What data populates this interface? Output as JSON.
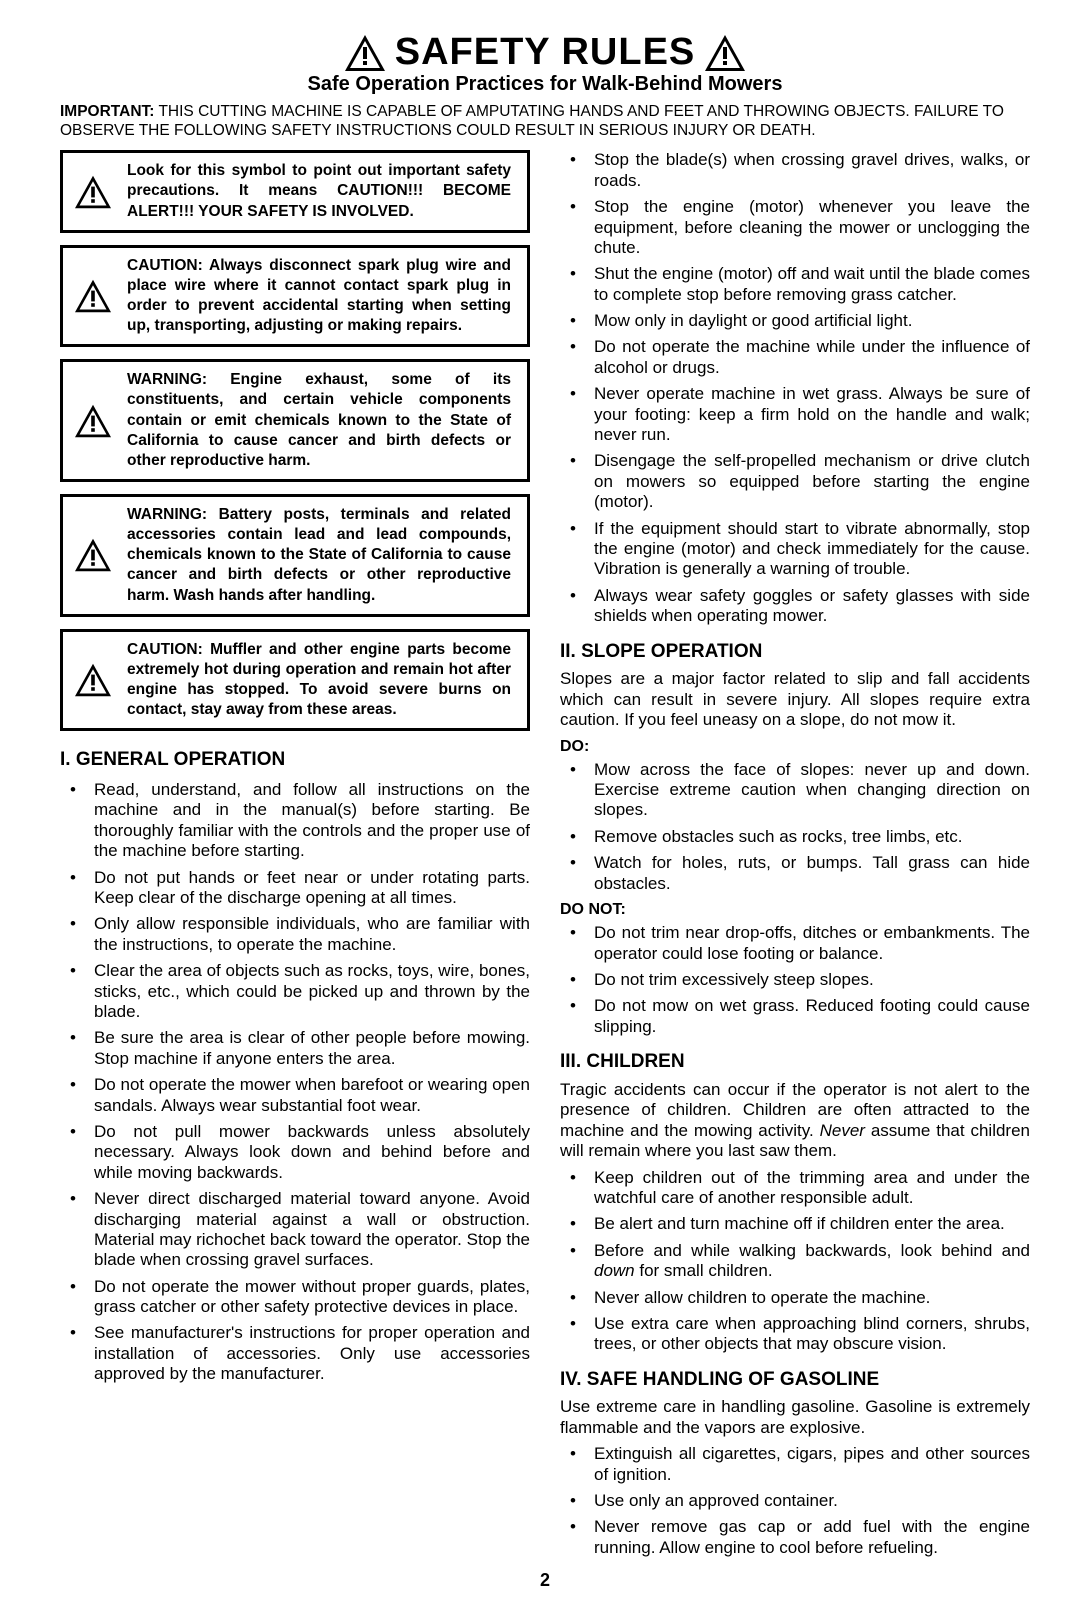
{
  "header": {
    "title": "SAFETY RULES",
    "subtitle": "Safe Operation Practices for Walk-Behind Mowers"
  },
  "important": {
    "label": "IMPORTANT:",
    "text": " THIS CUTTING MACHINE IS CAPABLE OF AMPUTATING HANDS AND FEET AND THROWING OBJECTS. FAILURE TO OBSERVE THE FOLLOWING SAFETY INSTRUCTIONS COULD RESULT IN SERIOUS INJURY OR DEATH."
  },
  "warnings": [
    "Look for this symbol to point out important safety precautions. It means CAUTION!!! BECOME ALERT!!! YOUR SAFETY IS INVOLVED.",
    "CAUTION: Always disconnect spark plug wire and place wire where it cannot contact spark plug in order to prevent accidental starting when setting up, transporting, adjusting or making repairs.",
    "WARNING: Engine exhaust, some of its constituents, and certain vehicle components contain or emit chemicals known to the State of California to cause cancer and birth defects or other reproductive harm.",
    "WARNING: Battery posts, terminals and related accessories contain lead and lead compounds, chemicals known to the State of California to cause cancer and birth defects or other reproductive harm. Wash hands after handling.",
    "CAUTION: Muffler and other engine parts become extremely hot during operation and remain hot after engine has stopped. To avoid severe burns on contact, stay away from these areas."
  ],
  "sections": {
    "general": {
      "heading": "I. GENERAL OPERATION",
      "items": [
        "Read, understand, and follow all instructions on the machine and in the manual(s) before starting. Be thoroughly familiar with the controls and the proper use of the machine before starting.",
        "Do not put hands or feet near or under rotating parts. Keep clear of the discharge opening at all times.",
        "Only allow responsible individuals, who are familiar with the instructions, to operate the machine.",
        "Clear the area of objects such as  rocks, toys, wire, bones, sticks, etc.,  which could be picked up and thrown by the blade.",
        "Be sure the area is clear of other people before mowing.  Stop machine if anyone enters the area.",
        "Do not operate the mower when barefoot or wearing open sandals.  Always wear substantial foot wear.",
        "Do not pull mower backwards unless absolutely necessary.  Always look down and behind before and while moving backwards.",
        "Never direct discharged material toward anyone. Avoid discharging material against a wall or obstruction.  Material may richochet back toward the operator.  Stop the blade when crossing gravel surfaces.",
        "Do not operate the mower without proper guards, plates, grass catcher or other safety protective devices in place.",
        "See manufacturer's instructions for proper operation and installation of accessories. Only use accessories approved by the manufacturer."
      ]
    },
    "general_cont": [
      "Stop the blade(s) when crossing gravel drives, walks, or roads.",
      "Stop the engine (motor) whenever you leave the equipment, before cleaning the mower or unclogging the chute.",
      "Shut the engine (motor) off and wait until the blade comes to complete stop before removing grass catcher.",
      "Mow only in daylight or good artificial light.",
      "Do not operate the machine while under the influence of alcohol or drugs.",
      "Never operate machine in wet grass.  Always be sure of your footing: keep a firm hold on the handle and walk; never run.",
      "Disengage the self-propelled mechanism or drive clutch on mowers so equipped before starting the engine (motor).",
      "If the equipment should start to vibrate abnormally, stop the engine (motor) and check immediately for the cause.  Vibration is generally a warning of trouble.",
      "Always wear safety goggles or safety glasses with side shields when operating mower."
    ],
    "slope": {
      "heading": "II.  SLOPE OPERATION",
      "intro": "Slopes are a major factor related to slip and fall accidents which can result in severe injury.  All slopes require extra caution.  If you feel uneasy on a slope, do not mow it.",
      "do_label": "DO:",
      "do_items": [
        "Mow across the face of slopes: never up and down. Exercise extreme caution when changing direction on slopes.",
        "Remove obstacles such as rocks, tree limbs, etc.",
        "Watch for holes, ruts, or bumps. Tall grass can hide obstacles."
      ],
      "donot_label": "DO NOT:",
      "donot_items": [
        "Do not trim near drop-offs, ditches or embankments. The operator could lose footing or balance.",
        "Do not trim excessively steep slopes.",
        "Do not mow on wet grass. Reduced footing could cause slipping."
      ]
    },
    "children": {
      "heading": "III. CHILDREN",
      "intro_pre": "Tragic accidents can occur if the operator is not alert to the presence of children.  Children are often attracted to the machine and the mowing activity. ",
      "intro_em": "Never",
      "intro_post": " assume that children will remain where you last saw them.",
      "items": [
        "Keep children out of the trimming area and under the watchful care of another responsible adult.",
        "Be alert and turn machine off if children enter the area.",
        "Before and while walking backwards, look behind and <em>down</em> for small children.",
        "Never allow children to operate the machine.",
        "Use extra care when approaching blind corners, shrubs, trees, or other objects that may obscure vision."
      ]
    },
    "gasoline": {
      "heading": "IV. SAFE HANDLING OF GASOLINE",
      "intro": "Use extreme care in handling gasoline.  Gasoline is extremely flammable and the vapors are explosive.",
      "items": [
        "Extinguish all cigarettes, cigars, pipes and other sources of ignition.",
        "Use only an approved container.",
        "Never remove gas cap or add fuel with the engine running.  Allow engine to cool before refueling."
      ]
    }
  },
  "page_number": "2",
  "colors": {
    "text": "#000000",
    "bg": "#ffffff",
    "border": "#000000"
  }
}
